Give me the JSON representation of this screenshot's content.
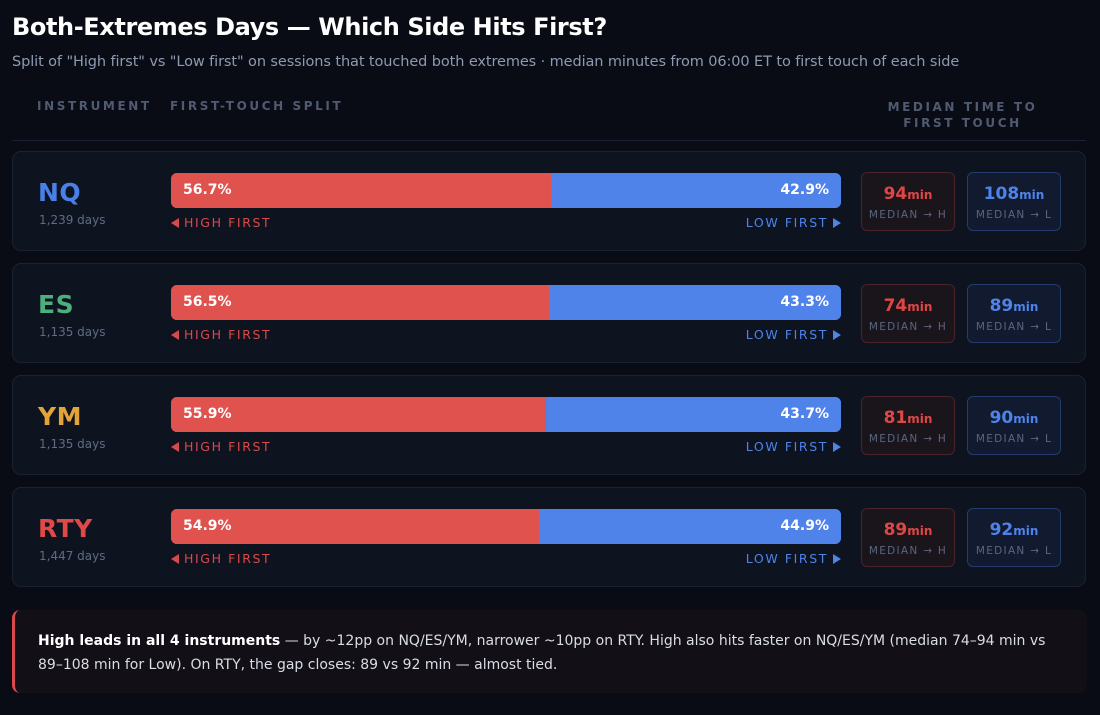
{
  "header": {
    "title": "Both-Extremes Days — Which Side Hits First?",
    "subtitle": "Split of \"High first\" vs \"Low first\" on sessions that touched both extremes · median minutes from 06:00 ET to first touch of each side"
  },
  "columns": {
    "instrument": "INSTRUMENT",
    "split": "FIRST-TOUCH SPLIT",
    "median": "MEDIAN TIME TO FIRST TOUCH"
  },
  "labels": {
    "high_first": "HIGH FIRST",
    "low_first": "LOW FIRST",
    "median_h": "MEDIAN → H",
    "median_l": "MEDIAN → L",
    "unit": "min"
  },
  "colors": {
    "high": "#df524d",
    "low": "#4f83ea",
    "NQ": "#4a7fe8",
    "ES": "#4caf7d",
    "YM": "#e3a33b",
    "RTY": "#df4a48"
  },
  "rows": [
    {
      "symbol": "NQ",
      "days": "1,239 days",
      "high_pct": "56.7%",
      "low_pct": "42.9%",
      "high_val": 56.7,
      "low_val": 42.9,
      "median_h": "94",
      "median_l": "108",
      "color": "#4a7fe8"
    },
    {
      "symbol": "ES",
      "days": "1,135 days",
      "high_pct": "56.5%",
      "low_pct": "43.3%",
      "high_val": 56.5,
      "low_val": 43.3,
      "median_h": "74",
      "median_l": "89",
      "color": "#4caf7d"
    },
    {
      "symbol": "YM",
      "days": "1,135 days",
      "high_pct": "55.9%",
      "low_pct": "43.7%",
      "high_val": 55.9,
      "low_val": 43.7,
      "median_h": "81",
      "median_l": "90",
      "color": "#e3a33b"
    },
    {
      "symbol": "RTY",
      "days": "1,447 days",
      "high_pct": "54.9%",
      "low_pct": "44.9%",
      "high_val": 54.9,
      "low_val": 44.9,
      "median_h": "89",
      "median_l": "92",
      "color": "#df4a48"
    }
  ],
  "note": {
    "bold": "High leads in all 4 instruments",
    "text": " — by ~12pp on NQ/ES/YM, narrower ~10pp on RTY. High also hits faster on NQ/ES/YM (median 74–94 min vs 89–108 min for Low). On RTY, the gap closes: 89 vs 92 min — almost tied."
  },
  "chart_data": {
    "type": "bar",
    "orientation": "horizontal-stacked",
    "title": "Both-Extremes Days — Which Side Hits First?",
    "subtitle": "Split of \"High first\" vs \"Low first\" on sessions that touched both extremes · median minutes from 06:00 ET to first touch of each side",
    "categories": [
      "NQ",
      "ES",
      "YM",
      "RTY"
    ],
    "sample_days": [
      1239,
      1135,
      1135,
      1447
    ],
    "series": [
      {
        "name": "High first (%)",
        "values": [
          56.7,
          56.5,
          55.9,
          54.9
        ],
        "color": "#df524d"
      },
      {
        "name": "Low first (%)",
        "values": [
          42.9,
          43.3,
          43.7,
          44.9
        ],
        "color": "#4f83ea"
      }
    ],
    "median_minutes": [
      {
        "name": "Median → H (min)",
        "values": [
          94,
          74,
          81,
          89
        ]
      },
      {
        "name": "Median → L (min)",
        "values": [
          108,
          89,
          90,
          92
        ]
      }
    ],
    "xlabel": "First-touch split",
    "ylabel": "Instrument",
    "xlim": [
      0,
      100
    ]
  }
}
